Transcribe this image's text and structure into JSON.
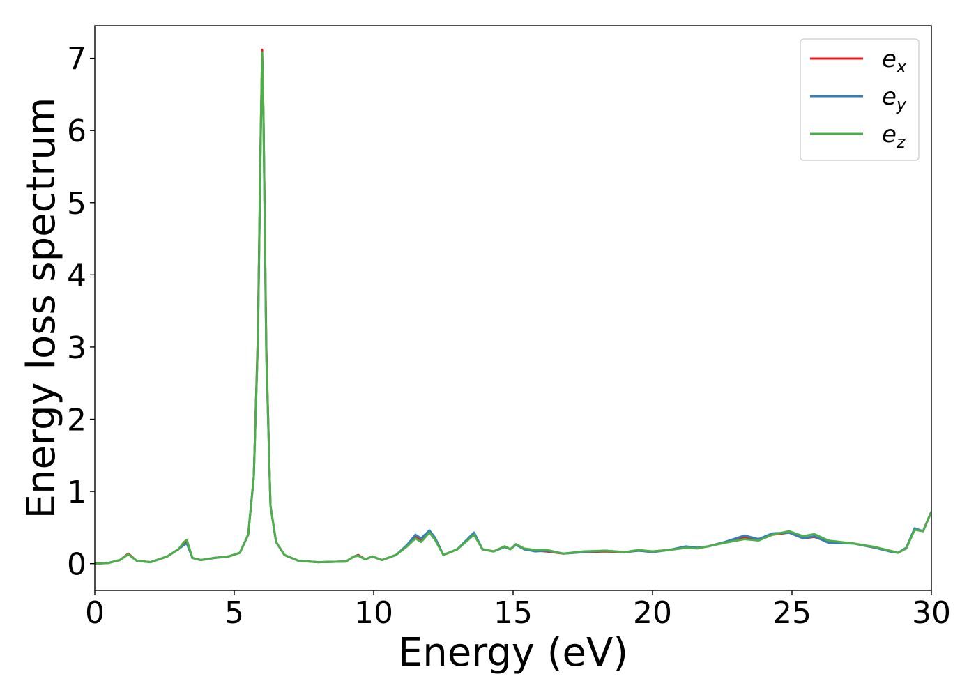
{
  "chart_data": {
    "type": "line",
    "xlabel": "Energy (eV)",
    "ylabel": "Energy loss spectrum",
    "xlim": [
      0,
      30
    ],
    "ylim": [
      -0.37,
      7.45
    ],
    "xticks": [
      0,
      5,
      10,
      15,
      20,
      25,
      30
    ],
    "yticks": [
      0,
      1,
      2,
      3,
      4,
      5,
      6,
      7
    ],
    "grid": false,
    "legend_position": "top-right",
    "x": [
      0,
      0.5,
      0.9,
      1.2,
      1.5,
      2.0,
      2.6,
      3.0,
      3.2,
      3.3,
      3.5,
      3.8,
      4.3,
      4.8,
      5.2,
      5.5,
      5.7,
      5.85,
      5.95,
      6.0,
      6.05,
      6.15,
      6.3,
      6.5,
      6.8,
      7.3,
      8.0,
      9.0,
      9.3,
      9.45,
      9.7,
      9.95,
      10.3,
      10.8,
      11.2,
      11.5,
      11.7,
      12.0,
      12.2,
      12.5,
      13.0,
      13.6,
      13.9,
      14.3,
      14.7,
      14.9,
      15.1,
      15.4,
      15.8,
      16.2,
      16.8,
      17.5,
      18.3,
      19.0,
      19.5,
      20.0,
      20.6,
      21.2,
      21.6,
      22.0,
      22.6,
      23.3,
      23.8,
      24.3,
      24.9,
      25.4,
      25.8,
      26.3,
      27.2,
      28.0,
      28.5,
      28.8,
      29.1,
      29.4,
      29.7,
      30.0
    ],
    "series": [
      {
        "name": "x",
        "color": "#e41a1c",
        "values": [
          0.0,
          0.01,
          0.05,
          0.14,
          0.04,
          0.02,
          0.1,
          0.2,
          0.28,
          0.3,
          0.08,
          0.05,
          0.08,
          0.1,
          0.15,
          0.4,
          1.2,
          3.2,
          6.0,
          7.12,
          6.2,
          3.0,
          0.8,
          0.3,
          0.12,
          0.04,
          0.02,
          0.03,
          0.1,
          0.12,
          0.06,
          0.1,
          0.05,
          0.12,
          0.25,
          0.38,
          0.33,
          0.45,
          0.35,
          0.12,
          0.2,
          0.42,
          0.2,
          0.17,
          0.24,
          0.2,
          0.27,
          0.2,
          0.18,
          0.17,
          0.14,
          0.16,
          0.17,
          0.16,
          0.18,
          0.17,
          0.19,
          0.23,
          0.22,
          0.24,
          0.3,
          0.37,
          0.34,
          0.4,
          0.43,
          0.35,
          0.37,
          0.3,
          0.28,
          0.22,
          0.18,
          0.15,
          0.22,
          0.48,
          0.45,
          0.72
        ]
      },
      {
        "name": "y",
        "color": "#377eb8",
        "values": [
          0.0,
          0.01,
          0.05,
          0.13,
          0.04,
          0.02,
          0.1,
          0.2,
          0.26,
          0.28,
          0.08,
          0.05,
          0.08,
          0.1,
          0.15,
          0.4,
          1.2,
          3.1,
          5.9,
          7.0,
          6.1,
          2.9,
          0.8,
          0.3,
          0.12,
          0.04,
          0.02,
          0.03,
          0.1,
          0.11,
          0.06,
          0.1,
          0.05,
          0.12,
          0.26,
          0.4,
          0.35,
          0.46,
          0.36,
          0.12,
          0.2,
          0.43,
          0.2,
          0.17,
          0.23,
          0.2,
          0.26,
          0.2,
          0.17,
          0.18,
          0.14,
          0.16,
          0.18,
          0.16,
          0.18,
          0.16,
          0.19,
          0.24,
          0.22,
          0.24,
          0.3,
          0.39,
          0.34,
          0.42,
          0.43,
          0.35,
          0.38,
          0.29,
          0.28,
          0.22,
          0.17,
          0.15,
          0.22,
          0.49,
          0.45,
          0.72
        ]
      },
      {
        "name": "z",
        "color": "#4daf4a",
        "values": [
          0.0,
          0.01,
          0.05,
          0.13,
          0.04,
          0.02,
          0.1,
          0.2,
          0.3,
          0.33,
          0.08,
          0.05,
          0.08,
          0.1,
          0.15,
          0.4,
          1.2,
          3.1,
          5.95,
          7.08,
          6.15,
          2.9,
          0.8,
          0.3,
          0.12,
          0.04,
          0.02,
          0.03,
          0.1,
          0.11,
          0.06,
          0.1,
          0.05,
          0.12,
          0.24,
          0.35,
          0.3,
          0.43,
          0.33,
          0.12,
          0.2,
          0.4,
          0.2,
          0.17,
          0.24,
          0.2,
          0.27,
          0.21,
          0.19,
          0.19,
          0.14,
          0.17,
          0.18,
          0.16,
          0.19,
          0.17,
          0.19,
          0.22,
          0.21,
          0.24,
          0.29,
          0.34,
          0.32,
          0.4,
          0.45,
          0.38,
          0.41,
          0.32,
          0.28,
          0.23,
          0.18,
          0.15,
          0.21,
          0.47,
          0.45,
          0.72
        ]
      }
    ]
  },
  "legend": {
    "items": [
      {
        "base": "e",
        "sub": "x",
        "color": "#e41a1c"
      },
      {
        "base": "e",
        "sub": "y",
        "color": "#377eb8"
      },
      {
        "base": "e",
        "sub": "z",
        "color": "#4daf4a"
      }
    ]
  }
}
